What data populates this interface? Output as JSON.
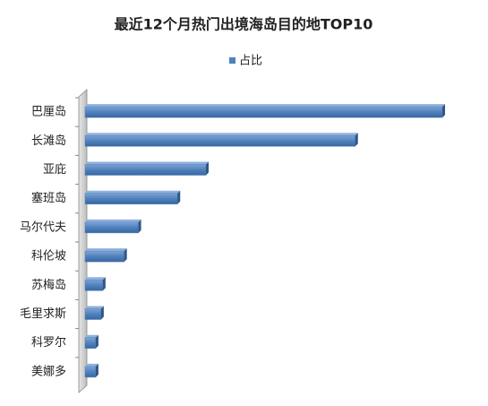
{
  "chart_data": {
    "type": "bar",
    "orientation": "horizontal",
    "title": "最近12个月热门出境海岛目的地TOP10",
    "categories": [
      "巴厘岛",
      "长滩岛",
      "亚庇",
      "塞班岛",
      "马尔代夫",
      "科伦坡",
      "苏梅岛",
      "毛里求斯",
      "科罗尔",
      "美娜多"
    ],
    "series": [
      {
        "name": "占比",
        "color": "#4f81bd",
        "values": [
          20.1,
          15.2,
          6.8,
          5.2,
          3.0,
          2.2,
          1.0,
          0.9,
          0.6,
          0.6
        ]
      }
    ],
    "xlim": [
      0,
      20.3
    ],
    "legend": "top"
  }
}
